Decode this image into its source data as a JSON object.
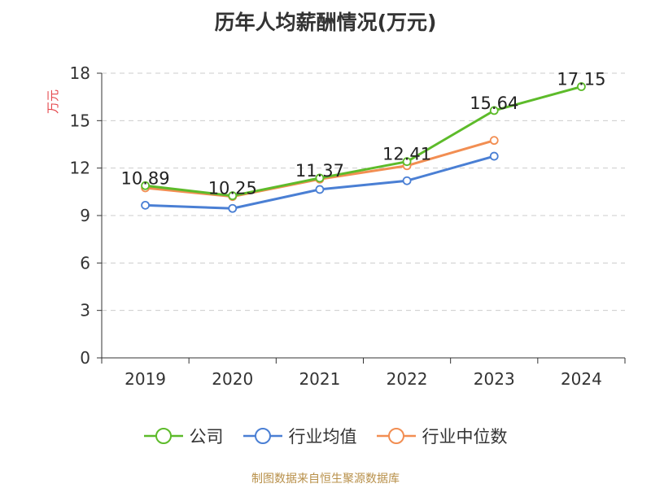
{
  "chart_data": {
    "type": "line",
    "title": "历年人均薪酬情况(万元)",
    "ylabel": "万元",
    "xlabel": "",
    "categories": [
      "2019",
      "2020",
      "2021",
      "2022",
      "2023",
      "2024"
    ],
    "ylim": [
      0,
      18
    ],
    "yticks": [
      0,
      3,
      6,
      9,
      12,
      15,
      18
    ],
    "grid": true,
    "legend_position": "bottom",
    "series": [
      {
        "name": "公司",
        "color": "#5dbb2a",
        "values": [
          10.89,
          10.25,
          11.37,
          12.41,
          15.64,
          17.15
        ],
        "labels": [
          "10.89",
          "10.25",
          "11.37",
          "12.41",
          "15.64",
          "17.15"
        ]
      },
      {
        "name": "行业均值",
        "color": "#4a7fd4",
        "values": [
          9.65,
          9.45,
          10.65,
          11.2,
          12.75,
          null
        ]
      },
      {
        "name": "行业中位数",
        "color": "#f28e52",
        "values": [
          10.75,
          10.2,
          11.3,
          12.15,
          13.75,
          null
        ]
      }
    ]
  },
  "source": "制图数据来自恒生聚源数据库"
}
